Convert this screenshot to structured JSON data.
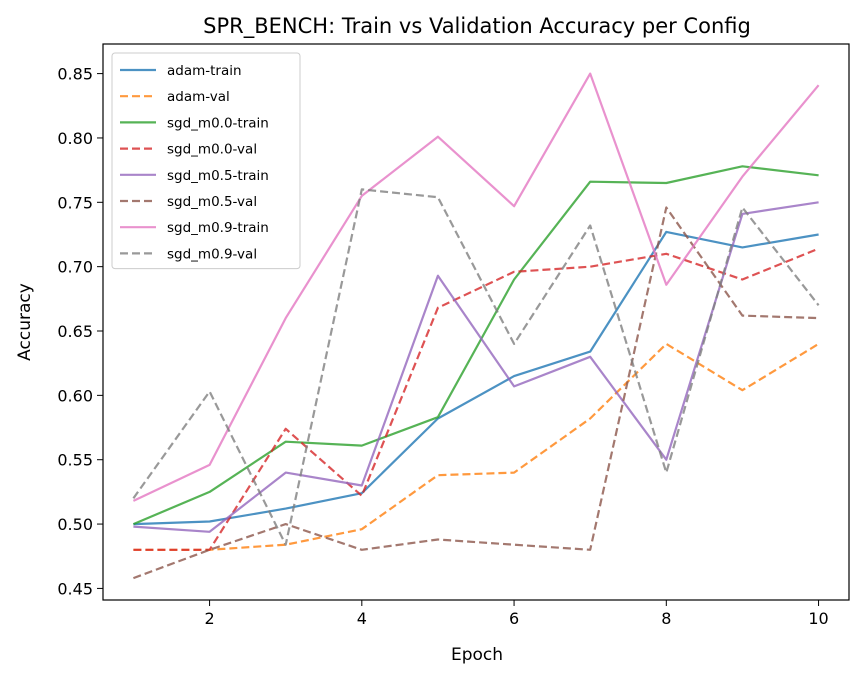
{
  "chart_data": {
    "type": "line",
    "title": "SPR_BENCH: Train vs Validation Accuracy per Config",
    "xlabel": "Epoch",
    "ylabel": "Accuracy",
    "xlim": [
      0.6,
      10.4
    ],
    "ylim": [
      0.441,
      0.873
    ],
    "xticks": [
      2,
      4,
      6,
      8,
      10
    ],
    "xtick_labels": [
      "2",
      "4",
      "6",
      "8",
      "10"
    ],
    "yticks": [
      0.45,
      0.5,
      0.55,
      0.6,
      0.65,
      0.7,
      0.75,
      0.8,
      0.85
    ],
    "ytick_labels": [
      "0.45",
      "0.50",
      "0.55",
      "0.60",
      "0.65",
      "0.70",
      "0.75",
      "0.80",
      "0.85"
    ],
    "grid": false,
    "legend_position": "top-left",
    "x": [
      1,
      2,
      3,
      4,
      5,
      6,
      7,
      8,
      9,
      10
    ],
    "series": [
      {
        "name": "adam-train",
        "color": "#1f77b4",
        "style": "solid",
        "values": [
          0.5,
          0.502,
          0.512,
          0.524,
          0.582,
          0.615,
          0.634,
          0.727,
          0.715,
          0.725
        ]
      },
      {
        "name": "adam-val",
        "color": "#ff7f0e",
        "style": "dashed",
        "values": [
          0.48,
          0.48,
          0.484,
          0.496,
          0.538,
          0.54,
          0.582,
          0.64,
          0.604,
          0.64
        ]
      },
      {
        "name": "sgd_m0.0-train",
        "color": "#2ca02c",
        "style": "solid",
        "values": [
          0.5,
          0.525,
          0.564,
          0.561,
          0.583,
          0.69,
          0.766,
          0.765,
          0.778,
          0.771
        ]
      },
      {
        "name": "sgd_m0.0-val",
        "color": "#d62728",
        "style": "dashed",
        "values": [
          0.48,
          0.48,
          0.574,
          0.522,
          0.668,
          0.696,
          0.7,
          0.71,
          0.69,
          0.714
        ]
      },
      {
        "name": "sgd_m0.5-train",
        "color": "#9467bd",
        "style": "solid",
        "values": [
          0.498,
          0.494,
          0.54,
          0.53,
          0.693,
          0.607,
          0.63,
          0.55,
          0.741,
          0.75
        ]
      },
      {
        "name": "sgd_m0.5-val",
        "color": "#8c564b",
        "style": "dashed",
        "values": [
          0.458,
          0.48,
          0.5,
          0.48,
          0.488,
          0.484,
          0.48,
          0.746,
          0.662,
          0.66
        ]
      },
      {
        "name": "sgd_m0.9-train",
        "color": "#e377c2",
        "style": "solid",
        "values": [
          0.518,
          0.546,
          0.66,
          0.755,
          0.801,
          0.747,
          0.85,
          0.686,
          0.77,
          0.841
        ]
      },
      {
        "name": "sgd_m0.9-val",
        "color": "#7f7f7f",
        "style": "dashed",
        "values": [
          0.52,
          0.603,
          0.484,
          0.76,
          0.754,
          0.64,
          0.732,
          0.54,
          0.746,
          0.67
        ]
      }
    ]
  }
}
